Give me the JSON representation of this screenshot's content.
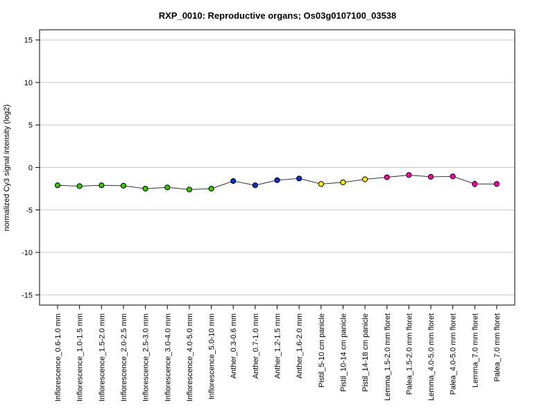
{
  "chart_data": {
    "type": "line",
    "title": "RXP_0010: Reproductive organs; Os03g0107100_03538",
    "xlabel": "",
    "ylabel": "normalized Cy3 signal intensity (log2)",
    "ylim": [
      -16.2,
      16.2
    ],
    "yticks": [
      15,
      10,
      5,
      0,
      -5,
      -10,
      -15
    ],
    "grid": true,
    "categories": [
      "Inflorescence_0.6-1.0 mm",
      "Inflorescence_1.0-1.5 mm",
      "Inflorescence_1.5-2.0 mm",
      "Inflorescence_2.0-2.5 mm",
      "Inflorescence_2.5-3.0 mm",
      "Inflorescence_3.0-4.0 mm",
      "Inflorescence_4.0-5.0 mm",
      "Inflorescence_5.0-10 mm",
      "Anther_0.3-0.6 mm",
      "Anther_0.7-1.0 mm",
      "Anther_1.2-1.5 mm",
      "Anther_1.6-2.0 mm",
      "Pistil_5-10 cm panicle",
      "Pistil_10-14 cm panicle",
      "Pistil_14-18 cm panicle",
      "Lemma_1.5-2.0 mm floret",
      "Palea_1.5-2.0 mm floret",
      "Lemma_4.0-5.0 mm floret",
      "Palea_4.0-5.0 mm floret",
      "Lemma_7.0 mm floret",
      "Palea_7.0 mm floret"
    ],
    "series": [
      {
        "values": [
          -2.1,
          -2.2,
          -2.1,
          -2.15,
          -2.5,
          -2.35,
          -2.6,
          -2.5,
          -1.6,
          -2.1,
          -1.5,
          -1.3,
          -1.95,
          -1.75,
          -1.4,
          -1.15,
          -0.9,
          -1.1,
          -1.05,
          -1.95,
          -1.95
        ],
        "errors": [
          0.1,
          0.1,
          0.1,
          0.1,
          0.15,
          0.1,
          0.1,
          0.1,
          0.15,
          0.1,
          0.1,
          0.1,
          0.3,
          0.3,
          0.2,
          0.2,
          0.25,
          0.15,
          0.15,
          0.4,
          0.3
        ],
        "colors": [
          "#33cc00",
          "#33cc00",
          "#33cc00",
          "#33cc00",
          "#33cc00",
          "#33cc00",
          "#33cc00",
          "#33cc00",
          "#0033cc",
          "#0033cc",
          "#0033cc",
          "#0033cc",
          "#ffee00",
          "#ffee00",
          "#ffee00",
          "#ff00aa",
          "#ff00aa",
          "#ff00aa",
          "#ff00aa",
          "#ff00aa",
          "#ff00aa"
        ]
      }
    ]
  }
}
